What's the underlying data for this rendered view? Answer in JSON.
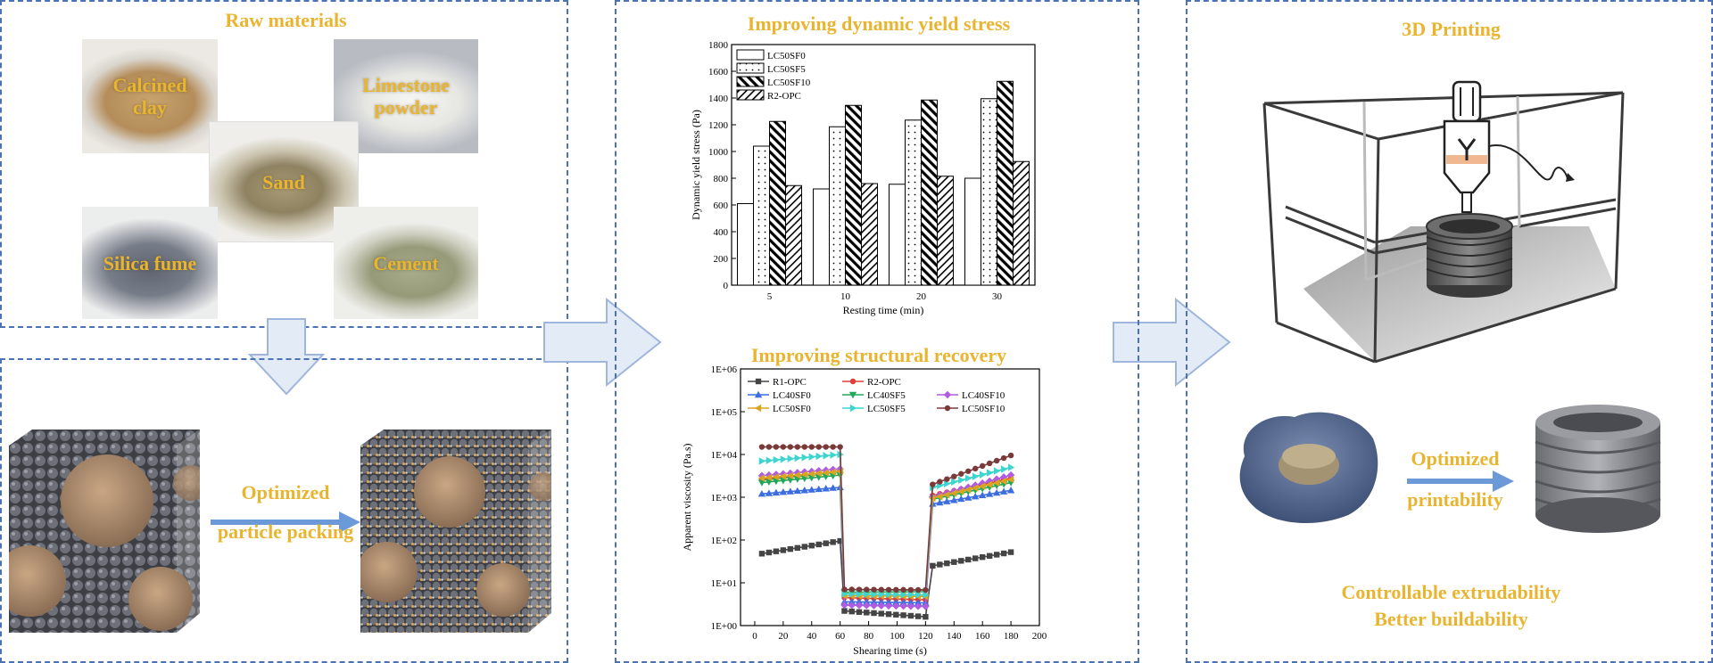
{
  "panels": {
    "raw": {
      "title": "Raw materials",
      "materials": [
        {
          "label_lines": [
            "Calcined",
            "clay"
          ]
        },
        {
          "label_lines": [
            "Limestone",
            "powder"
          ]
        },
        {
          "label_lines": [
            "Sand"
          ]
        },
        {
          "label_lines": [
            "Silica fume"
          ]
        },
        {
          "label_lines": [
            "Cement"
          ]
        }
      ]
    },
    "packing": {
      "label_lines": [
        "Optimized",
        "particle packing"
      ]
    },
    "yield": {
      "title": "Improving dynamic yield stress"
    },
    "recovery": {
      "title": "Improving structural recovery"
    },
    "printing": {
      "title": "3D Printing",
      "arrow_label_lines": [
        "Optimized",
        "printability"
      ],
      "conclusion_lines": [
        "Controllable extrudability",
        "Better buildability"
      ]
    }
  },
  "colors": {
    "panel_border": "#4a72b5",
    "title": "#e9b530",
    "arrow_fill": "#dde7f5",
    "arrow_stroke": "#8fa9d3",
    "blue_arrow": "#6c9ad8"
  },
  "chart_data": [
    {
      "type": "bar",
      "title": "",
      "xlabel": "Resting time (min)",
      "ylabel": "Dynamic yield stress (Pa)",
      "categories": [
        "5",
        "10",
        "20",
        "30"
      ],
      "ylim": [
        0,
        1800
      ],
      "yticks": [
        0,
        200,
        400,
        600,
        800,
        1000,
        1200,
        1400,
        1600,
        1800
      ],
      "legend": "top-left",
      "series": [
        {
          "name": "LC50SF0",
          "pattern": "blank",
          "values": [
            610,
            720,
            755,
            800
          ]
        },
        {
          "name": "LC50SF5",
          "pattern": "dots",
          "values": [
            1040,
            1185,
            1235,
            1395
          ]
        },
        {
          "name": "LC50SF10",
          "pattern": "back-diagonal",
          "values": [
            1225,
            1345,
            1385,
            1525
          ]
        },
        {
          "name": "R2-OPC",
          "pattern": "diagonal",
          "values": [
            745,
            760,
            815,
            925
          ]
        }
      ]
    },
    {
      "type": "line",
      "title": "",
      "xlabel": "Shearing time (s)",
      "ylabel": "Apparent viscosity (Pa.s)",
      "yscale": "log",
      "xlim": [
        -10,
        200
      ],
      "xticks": [
        0,
        20,
        40,
        60,
        80,
        100,
        120,
        140,
        160,
        180,
        200
      ],
      "ylim": [
        1,
        1000000
      ],
      "ytick_labels": [
        "1E+00",
        "1E+01",
        "1E+02",
        "1E+03",
        "1E+04",
        "1E+05",
        "1E+06"
      ],
      "legend": "top-left",
      "x": [
        5,
        60,
        63,
        120,
        125,
        180
      ],
      "series": [
        {
          "name": "R1-OPC",
          "color": "#444444",
          "marker": "square",
          "values": [
            48,
            95,
            2.2,
            1.6,
            25,
            52
          ]
        },
        {
          "name": "R2-OPC",
          "color": "#e03c3c",
          "marker": "circle",
          "values": [
            2600,
            4100,
            4.5,
            4.0,
            1100,
            2800
          ]
        },
        {
          "name": "LC40SF0",
          "color": "#3c6ee0",
          "marker": "triangle-up",
          "values": [
            1200,
            1700,
            3.6,
            3.4,
            700,
            1450
          ]
        },
        {
          "name": "LC40SF5",
          "color": "#22a85a",
          "marker": "triangle-down",
          "values": [
            2200,
            3300,
            6.0,
            6.2,
            900,
            2200
          ]
        },
        {
          "name": "LC40SF10",
          "color": "#b05ce0",
          "marker": "diamond",
          "values": [
            3200,
            4600,
            3.0,
            2.8,
            1000,
            3300
          ]
        },
        {
          "name": "LC50SF0",
          "color": "#d9a521",
          "marker": "triangle-left",
          "values": [
            2800,
            4000,
            5.0,
            4.8,
            950,
            2600
          ]
        },
        {
          "name": "LC50SF5",
          "color": "#3fd5cf",
          "marker": "triangle-right",
          "values": [
            7000,
            10000,
            5.5,
            5.2,
            1700,
            5000
          ]
        },
        {
          "name": "LC50SF10",
          "color": "#7a3a3a",
          "marker": "hexagon",
          "values": [
            15000,
            15000,
            7.0,
            6.8,
            2000,
            9500
          ]
        }
      ]
    }
  ]
}
